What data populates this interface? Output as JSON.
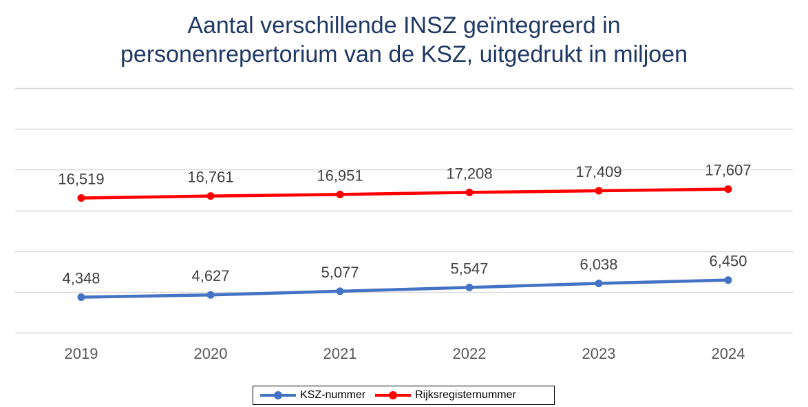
{
  "title_lines": [
    "Aantal verschillende INSZ geïntegreerd in",
    "personenrepertorium van de KSZ, uitgedrukt in miljoen"
  ],
  "colors": {
    "title": "#1f3864",
    "ksz": "#4472c4",
    "rijks": "#ff0000",
    "grid": "#d9d9d9"
  },
  "chart_data": {
    "type": "line",
    "title": "Aantal verschillende INSZ geïntegreerd in personenrepertorium van de KSZ, uitgedrukt in miljoen",
    "categories": [
      "2019",
      "2020",
      "2021",
      "2022",
      "2023",
      "2024"
    ],
    "series": [
      {
        "name": "KSZ-nummer",
        "color": "#4472c4",
        "values": [
          4.348,
          4.627,
          5.077,
          5.547,
          6.038,
          6.45
        ],
        "labels": [
          "4,348",
          "4,627",
          "5,077",
          "5,547",
          "6,038",
          "6,450"
        ]
      },
      {
        "name": "Rijksregisternummer",
        "color": "#ff0000",
        "values": [
          16.519,
          16.761,
          16.951,
          17.208,
          17.409,
          17.607
        ],
        "labels": [
          "16,519",
          "16,761",
          "16,951",
          "17,208",
          "17,409",
          "17,607"
        ]
      }
    ],
    "xlabel": "",
    "ylabel": "",
    "ylim": [
      0,
      30
    ],
    "y_gridlines": [
      0,
      5,
      10,
      15,
      20,
      25,
      30
    ],
    "y_tick_labels_shown": false,
    "grid": true,
    "legend_position": "bottom"
  },
  "legend": {
    "items": [
      {
        "label": "KSZ-nummer",
        "color": "#4472c4"
      },
      {
        "label": "Rijksregisternummer",
        "color": "#ff0000"
      }
    ]
  }
}
